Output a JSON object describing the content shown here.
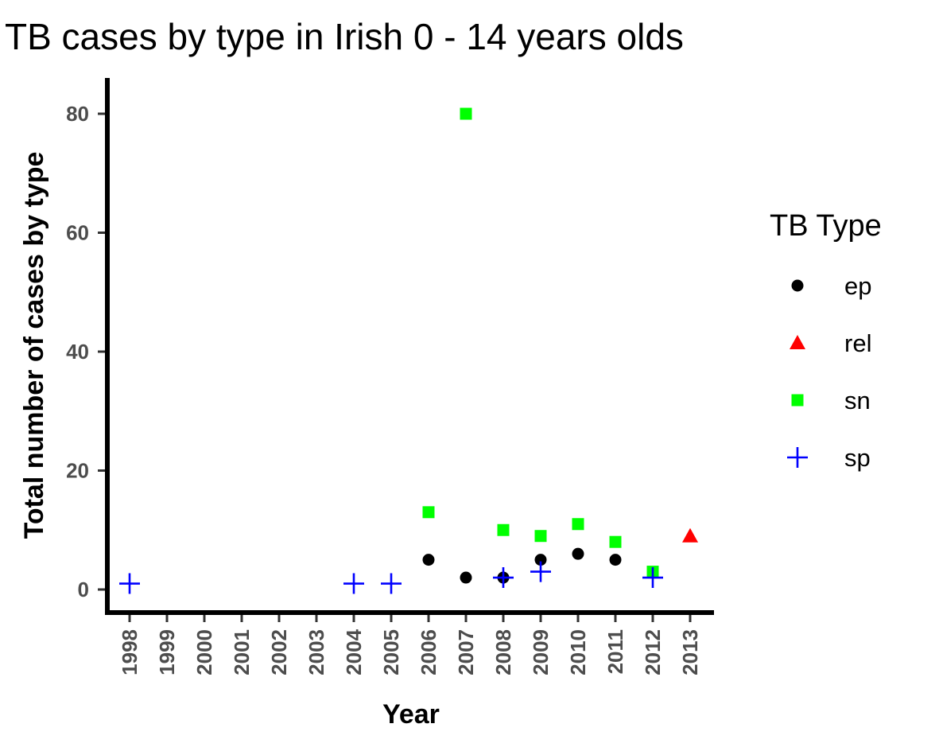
{
  "chart_data": {
    "type": "scatter",
    "title": "TB cases by type in Irish 0 - 14 years olds",
    "xlabel": "Year",
    "ylabel": "Total number of cases by type",
    "categories": [
      "1998",
      "1999",
      "2000",
      "2001",
      "2002",
      "2003",
      "2004",
      "2005",
      "2006",
      "2007",
      "2008",
      "2009",
      "2010",
      "2011",
      "2012",
      "2013"
    ],
    "y_ticks": [
      0,
      20,
      40,
      60,
      80
    ],
    "ylim": [
      -4,
      86
    ],
    "grid": false,
    "legend": {
      "title": "TB Type",
      "placement": "right"
    },
    "series": [
      {
        "name": "ep",
        "shape": "circle",
        "color": "#000000",
        "points": [
          {
            "x": "2006",
            "y": 5
          },
          {
            "x": "2007",
            "y": 2
          },
          {
            "x": "2008",
            "y": 2
          },
          {
            "x": "2009",
            "y": 5
          },
          {
            "x": "2010",
            "y": 6
          },
          {
            "x": "2011",
            "y": 5
          }
        ]
      },
      {
        "name": "rel",
        "shape": "triangle",
        "color": "#ff0000",
        "points": [
          {
            "x": "2013",
            "y": 9
          }
        ]
      },
      {
        "name": "sn",
        "shape": "square",
        "color": "#00ff00",
        "points": [
          {
            "x": "2006",
            "y": 13
          },
          {
            "x": "2007",
            "y": 80
          },
          {
            "x": "2008",
            "y": 10
          },
          {
            "x": "2009",
            "y": 9
          },
          {
            "x": "2010",
            "y": 11
          },
          {
            "x": "2011",
            "y": 8
          },
          {
            "x": "2012",
            "y": 3
          }
        ]
      },
      {
        "name": "sp",
        "shape": "plus",
        "color": "#0000ff",
        "points": [
          {
            "x": "1998",
            "y": 1
          },
          {
            "x": "2004",
            "y": 1
          },
          {
            "x": "2005",
            "y": 1
          },
          {
            "x": "2008",
            "y": 2
          },
          {
            "x": "2009",
            "y": 3
          },
          {
            "x": "2012",
            "y": 2
          }
        ]
      }
    ]
  }
}
